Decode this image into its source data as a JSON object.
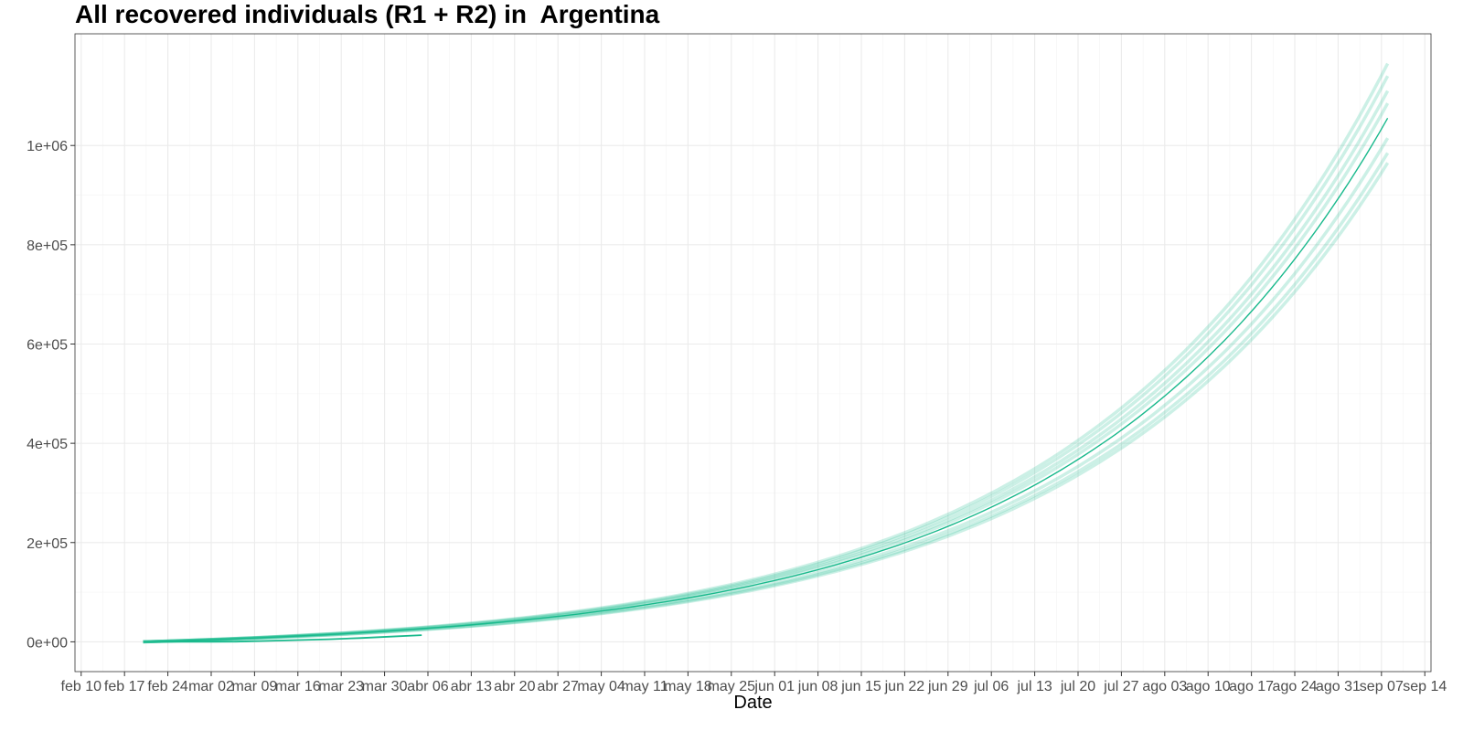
{
  "chart_data": {
    "type": "line",
    "title": "All recovered individuals (R1 + R2) in  Argentina",
    "xlabel": "Date",
    "ylabel": "",
    "x_axis": {
      "start_label_day": 0,
      "end_label_day": 217,
      "xlim_days": [
        -1,
        218
      ],
      "tick_labels": [
        "feb 10",
        "feb 17",
        "feb 24",
        "mar 02",
        "mar 09",
        "mar 16",
        "mar 23",
        "mar 30",
        "abr 06",
        "abr 13",
        "abr 20",
        "abr 27",
        "may 04",
        "may 11",
        "may 18",
        "may 25",
        "jun 01",
        "jun 08",
        "jun 15",
        "jun 22",
        "jun 29",
        "jul 06",
        "jul 13",
        "jul 20",
        "jul 27",
        "ago 03",
        "ago 10",
        "ago 17",
        "ago 24",
        "ago 31",
        "sep 07",
        "sep 14"
      ]
    },
    "ylim": [
      -60000,
      1225000
    ],
    "y_ticks": [
      0,
      200000,
      400000,
      600000,
      800000,
      1000000
    ],
    "y_tick_labels": [
      "0e+00",
      "2e+05",
      "4e+05",
      "6e+05",
      "8e+05",
      "1e+06"
    ],
    "grid": true,
    "line_color": "#19b98c",
    "band_color": "#19b98c",
    "observed_series": {
      "name": "observed",
      "days": [
        10,
        14,
        17,
        21,
        25,
        30,
        35,
        40,
        45,
        50,
        55
      ],
      "values": [
        0,
        0,
        50,
        150,
        400,
        1800,
        3500,
        5200,
        7500,
        10500,
        13500
      ]
    },
    "series": [
      {
        "name": "median",
        "start_day": 10,
        "end_day": 211,
        "start_value": 0,
        "end_value": 1055000
      },
      {
        "name": "sim-1",
        "start_day": 10,
        "end_day": 211,
        "start_value": 0,
        "end_value": 1165000
      },
      {
        "name": "sim-2",
        "start_day": 10,
        "end_day": 211,
        "start_value": 0,
        "end_value": 1140000
      },
      {
        "name": "sim-3",
        "start_day": 10,
        "end_day": 211,
        "start_value": 0,
        "end_value": 1110000
      },
      {
        "name": "sim-4",
        "start_day": 10,
        "end_day": 211,
        "start_value": 0,
        "end_value": 1085000
      },
      {
        "name": "sim-5",
        "start_day": 10,
        "end_day": 211,
        "start_value": 0,
        "end_value": 1015000
      },
      {
        "name": "sim-6",
        "start_day": 10,
        "end_day": 211,
        "start_value": 0,
        "end_value": 985000
      },
      {
        "name": "sim-7",
        "start_day": 10,
        "end_day": 211,
        "start_value": 0,
        "end_value": 965000
      }
    ]
  }
}
